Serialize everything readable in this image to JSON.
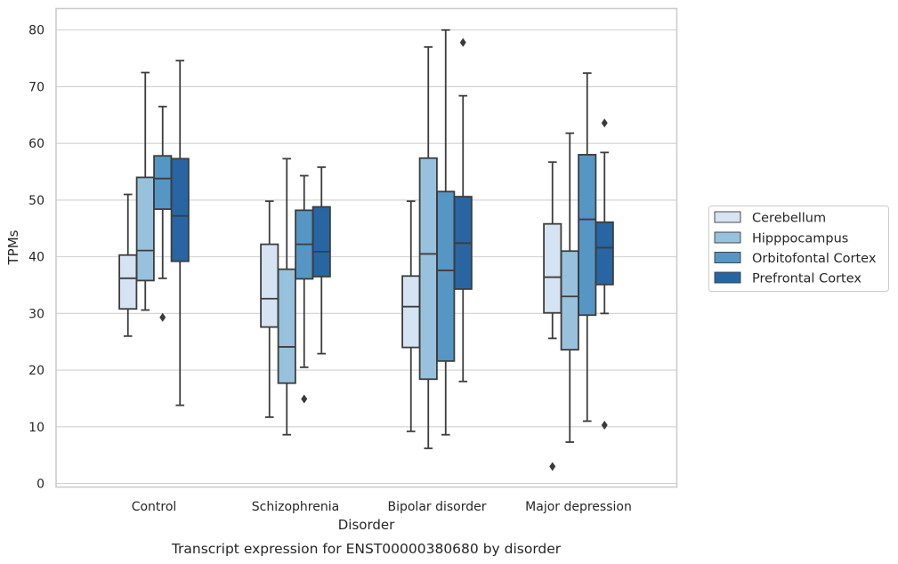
{
  "chart_data": {
    "type": "boxplot",
    "title": "",
    "caption": "Transcript expression for ENST00000380680 by disorder",
    "xlabel": "Disorder",
    "ylabel": "TPMs",
    "ylim": [
      -0.5,
      84
    ],
    "yticks": [
      0,
      10,
      20,
      30,
      40,
      50,
      60,
      70,
      80
    ],
    "grid": true,
    "legend_position": "right",
    "categories": [
      "Control",
      "Schizophrenia",
      "Bipolar disorder",
      "Major depression"
    ],
    "series": [
      {
        "name": "Cerebellum",
        "color": "#d5e3f2",
        "boxes": [
          {
            "whislo": 26,
            "q1": 30.8,
            "med": 36.2,
            "q3": 40.3,
            "whishi": 51,
            "fliers": []
          },
          {
            "whislo": 11.7,
            "q1": 27.6,
            "med": 32.6,
            "q3": 42.2,
            "whishi": 49.8,
            "fliers": []
          },
          {
            "whislo": 9.2,
            "q1": 24,
            "med": 31.2,
            "q3": 36.6,
            "whishi": 49.8,
            "fliers": []
          },
          {
            "whislo": 25.6,
            "q1": 30.1,
            "med": 36.4,
            "q3": 45.8,
            "whishi": 56.7,
            "fliers": [
              3
            ]
          }
        ]
      },
      {
        "name": "Hipppocampus",
        "color": "#98c1dd",
        "boxes": [
          {
            "whislo": 30.6,
            "q1": 35.8,
            "med": 41.1,
            "q3": 54,
            "whishi": 72.5,
            "fliers": []
          },
          {
            "whislo": 8.6,
            "q1": 17.7,
            "med": 24.1,
            "q3": 37.8,
            "whishi": 57.3,
            "fliers": []
          },
          {
            "whislo": 6.2,
            "q1": 18.4,
            "med": 40.5,
            "q3": 57.4,
            "whishi": 77,
            "fliers": []
          },
          {
            "whislo": 7.3,
            "q1": 23.6,
            "med": 33,
            "q3": 41,
            "whishi": 61.8,
            "fliers": []
          }
        ]
      },
      {
        "name": "Orbitofontal Cortex",
        "color": "#5596c5",
        "boxes": [
          {
            "whislo": 36.2,
            "q1": 48.4,
            "med": 53.8,
            "q3": 57.8,
            "whishi": 66.5,
            "fliers": [
              29.3
            ]
          },
          {
            "whislo": 20.5,
            "q1": 36.1,
            "med": 42.2,
            "q3": 48.2,
            "whishi": 54.3,
            "fliers": [
              14.9
            ]
          },
          {
            "whislo": 8.6,
            "q1": 21.6,
            "med": 37.6,
            "q3": 51.5,
            "whishi": 80,
            "fliers": []
          },
          {
            "whislo": 11,
            "q1": 29.7,
            "med": 46.6,
            "q3": 58,
            "whishi": 72.4,
            "fliers": []
          }
        ]
      },
      {
        "name": "Prefrontal Cortex",
        "color": "#2865a3",
        "boxes": [
          {
            "whislo": 13.8,
            "q1": 39.2,
            "med": 47.2,
            "q3": 57.3,
            "whishi": 74.6,
            "fliers": []
          },
          {
            "whislo": 22.9,
            "q1": 36.5,
            "med": 40.9,
            "q3": 48.8,
            "whishi": 55.8,
            "fliers": []
          },
          {
            "whislo": 18,
            "q1": 34.3,
            "med": 42.4,
            "q3": 50.6,
            "whishi": 68.4,
            "fliers": [
              77.8
            ]
          },
          {
            "whislo": 30,
            "q1": 35.1,
            "med": 41.6,
            "q3": 46.1,
            "whishi": 58.4,
            "fliers": [
              63.6,
              10.3
            ]
          }
        ]
      }
    ]
  }
}
